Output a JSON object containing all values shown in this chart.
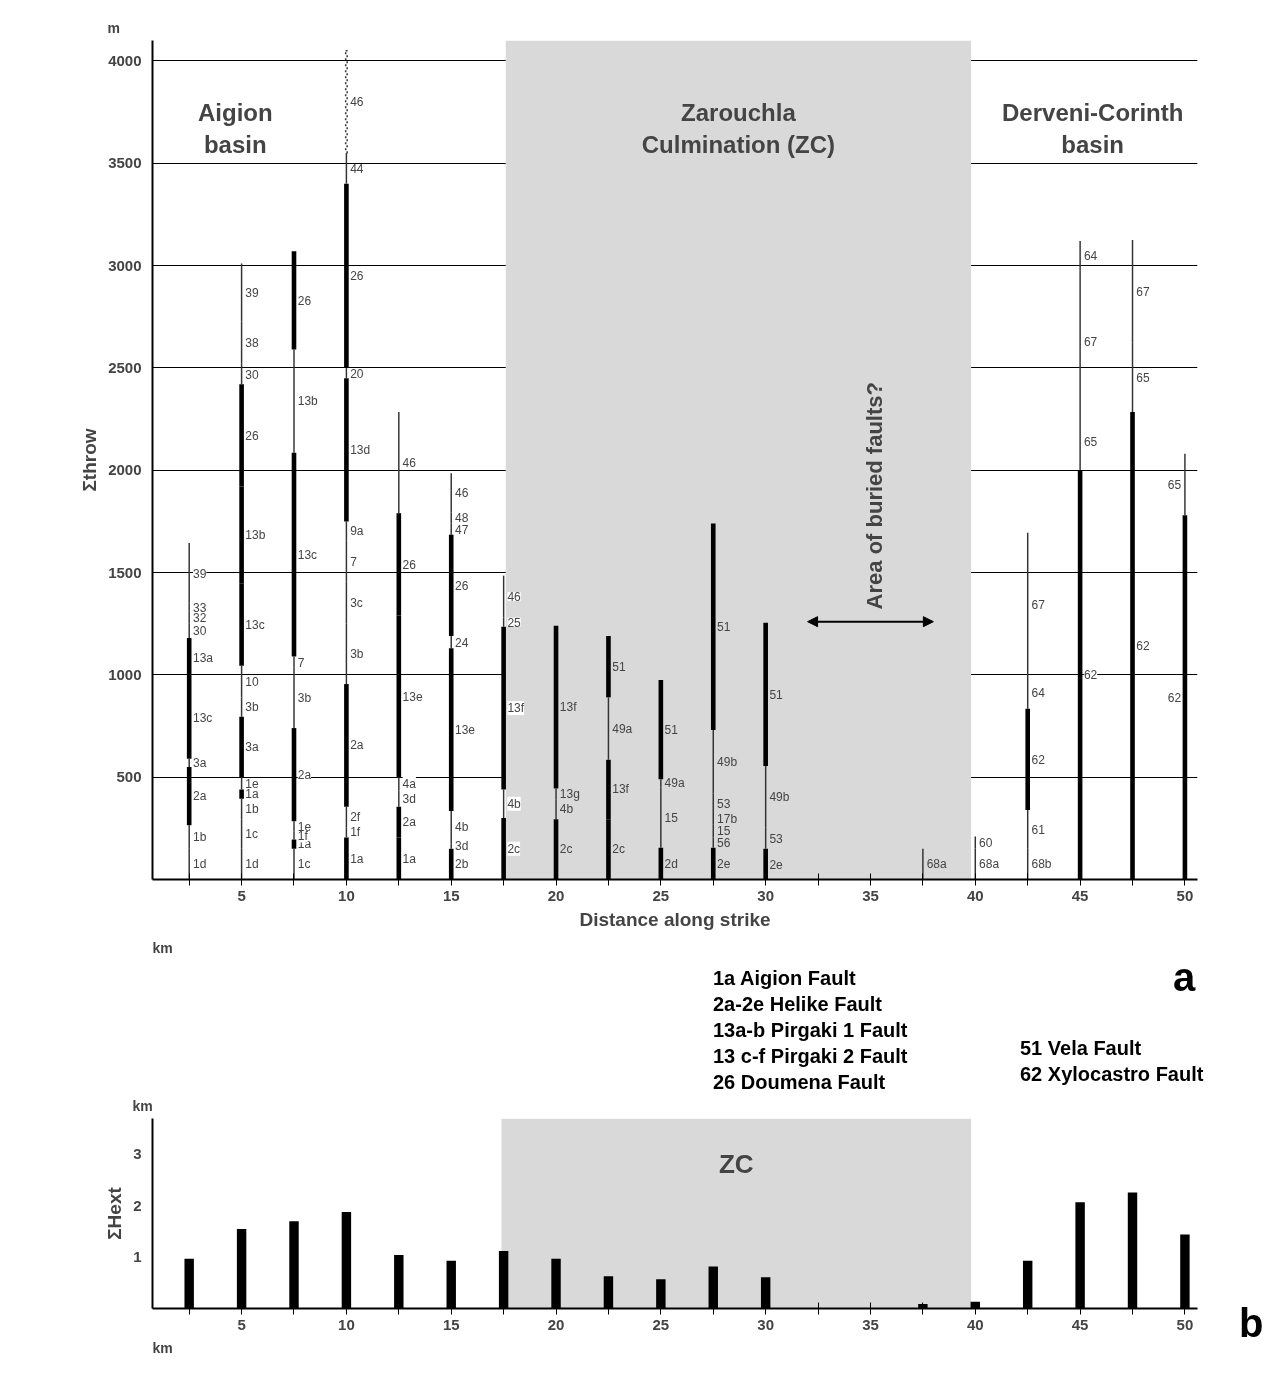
{
  "chart_data": [
    {
      "type": "bar",
      "ylabel": "Σthrow",
      "xlabel": "Distance along strike",
      "xlim": [
        0.75,
        50.6
      ],
      "ylim": [
        0,
        4100
      ],
      "xticks": [
        {
          "value": 2.5,
          "label": null
        },
        5,
        {
          "value": 7.5,
          "label": null
        },
        10,
        {
          "value": 12.5,
          "label": null
        },
        15,
        {
          "value": 17.5,
          "label": null
        },
        20,
        {
          "value": 22.5,
          "label": null
        },
        25,
        {
          "value": 27.5,
          "label": null
        },
        30,
        {
          "value": 32.5,
          "label": null
        },
        35,
        {
          "value": 37.5,
          "label": null
        },
        40,
        {
          "value": 42.5,
          "label": null
        },
        45,
        {
          "value": 47.5,
          "label": null
        },
        50
      ],
      "yticks": [
        500,
        1000,
        1500,
        2000,
        2500,
        3000,
        3500,
        4000
      ],
      "grid": "y",
      "bands": [
        {
          "axis": "x",
          "from": 17.6,
          "to": 39.8,
          "label": "Zarouchla\nCulmination (ZC)",
          "color": "#d9d9d9"
        }
      ],
      "series": [
        {
          "color": "#000000",
          "x": [
            2.5,
            5,
            7.5,
            10,
            12.5,
            15,
            17.5,
            20,
            22.5,
            25,
            27.5,
            30,
            42.5,
            45,
            47.5,
            50
          ],
          "base": [
            265,
            395,
            150,
            0,
            0,
            0,
            0,
            0,
            0,
            0,
            0,
            0,
            340,
            0,
            0,
            0
          ],
          "values": [
            285,
            45,
            45,
            205,
            205,
            150,
            300,
            295,
            295,
            155,
            155,
            150,
            495,
            2000,
            2285,
            1780
          ]
        },
        {
          "color": "#000000",
          "x": [
            2.5,
            5,
            7.5,
            10,
            12.5,
            15,
            17.5,
            20,
            22.5,
            25,
            27.5,
            30
          ],
          "base": [
            590,
            500,
            285,
            355,
            205,
            335,
            440,
            445,
            295,
            490,
            730,
            555
          ],
          "values": [
            395,
            295,
            455,
            600,
            150,
            795,
            795,
            795,
            290,
            485,
            1010,
            700
          ]
        },
        {
          "color": "#000000",
          "x": [
            2.5,
            5,
            7.5,
            10,
            12.5,
            15,
            22.5
          ],
          "base": [
            985,
            1045,
            1090,
            1750,
            500,
            1190,
            890
          ],
          "values": [
            195,
            400,
            995,
            700,
            790,
            495,
            300
          ]
        },
        {
          "color": "#000000",
          "x": [
            5,
            7.5,
            10,
            12.5
          ],
          "base": [
            1445,
            2590,
            2500,
            1290
          ],
          "values": [
            475,
            480,
            900,
            500
          ]
        },
        {
          "color": "#000000",
          "x": [
            5
          ],
          "base": [
            1920
          ],
          "values": [
            500
          ]
        },
        {
          "color": "#333333",
          "x": [
            2.5,
            5,
            7.5,
            10,
            12.5,
            15,
            17.5,
            20,
            22.5,
            25,
            27.5,
            30,
            37.5,
            40,
            42.5,
            45,
            47.5,
            50
          ],
          "base": [
            0,
            0,
            0,
            205,
            355,
            150,
            300,
            295,
            585,
            155,
            155,
            150,
            0,
            0,
            0,
            2000,
            2285,
            1780
          ],
          "values": [
            150,
            150,
            150,
            50,
            80,
            25,
            140,
            95,
            305,
            295,
            50,
            105,
            150,
            150,
            150,
            280,
            340,
            300
          ]
        },
        {
          "color": "#333333",
          "x": [
            2.5,
            5,
            7.5,
            10,
            12.5,
            15,
            17.5,
            20,
            25,
            27.5,
            30,
            40,
            42.5,
            45,
            47.5
          ],
          "base": [
            150,
            150,
            195,
            255,
            435,
            175,
            1235,
            390,
            450,
            205,
            255,
            150,
            150,
            2280,
            2625
          ],
          "values": [
            115,
            145,
            40,
            100,
            65,
            160,
            45,
            55,
            40,
            65,
            300,
            60,
            190,
            695,
            500
          ]
        },
        {
          "color": "#333333",
          "x": [
            2.5,
            5,
            7.5,
            10,
            12.5,
            15,
            17.5,
            27.5,
            42.5,
            45
          ],
          "base": [
            550,
            295,
            235,
            955,
            1790,
            1130,
            1280,
            270,
            835,
            2975
          ],
          "values": [
            40,
            100,
            50,
            295,
            495,
            60,
            205,
            55,
            160,
            145
          ]
        },
        {
          "color": "#333333",
          "x": [
            2.5,
            5,
            7.5,
            10,
            15,
            27.5,
            42.5
          ],
          "base": [
            1180,
            440,
            740,
            1250,
            1685,
            325,
            995
          ],
          "values": [
            70,
            60,
            295,
            205,
            55,
            95,
            700
          ]
        },
        {
          "color": "#333333",
          "x": [
            2.5,
            5,
            7.5,
            10,
            15,
            27.5
          ],
          "base": [
            1250,
            795,
            1035,
            1455,
            1740,
            420
          ],
          "values": [
            60,
            95,
            55,
            200,
            55,
            310
          ]
        },
        {
          "color": "#333333",
          "x": [
            2.5,
            5,
            7.5,
            10,
            15
          ],
          "base": [
            1310,
            890,
            2085,
            1655,
            1795
          ],
          "values": [
            40,
            155,
            505,
            95,
            190
          ]
        },
        {
          "color": "#333333",
          "x": [
            2.5,
            5,
            10
          ],
          "base": [
            1350,
            2420,
            2450
          ],
          "values": [
            295,
            100,
            50
          ]
        },
        {
          "color": "#333333",
          "x": [
            5,
            10
          ],
          "base": [
            2520,
            3400
          ],
          "values": [
            205,
            150
          ]
        },
        {
          "color": "#333333",
          "x": [
            5
          ],
          "base": [
            2725
          ],
          "values": [
            285
          ]
        },
        {
          "color": "#333333",
          "line_style": "dotted",
          "x": [
            10
          ],
          "base": [
            3550
          ],
          "values": [
            500
          ]
        }
      ],
      "annotations": [
        "m",
        "km",
        "Aigion\nbasin",
        "Derveni-Corinth\nbasin",
        "Area of buried faults?",
        "1a Aigion Fault",
        "2a-2e Helike Fault",
        "13a-b Pirgaki 1 Fault",
        "13 c-f Pirgaki 2 Fault",
        "26 Doumena Fault",
        "51 Vela Fault",
        "62 Xylocastro Fault",
        "a",
        {
          "text": "1d",
          "x": 2.5,
          "y": 75
        },
        {
          "text": "1b",
          "x": 2.5,
          "y": 207.5
        },
        {
          "text": "2a",
          "x": 2.5,
          "y": 407.5
        },
        {
          "text": "3a",
          "x": 2.5,
          "y": 570
        },
        {
          "text": "13c",
          "x": 2.5,
          "y": 787.5
        },
        {
          "text": "13a",
          "x": 2.5,
          "y": 1082.5
        },
        {
          "text": "30",
          "x": 2.5,
          "y": 1215
        },
        {
          "text": "32",
          "x": 2.5,
          "y": 1280
        },
        {
          "text": "33",
          "x": 2.5,
          "y": 1330
        },
        {
          "text": "39",
          "x": 2.5,
          "y": 1497.5
        },
        {
          "text": "1d",
          "x": 5,
          "y": 75
        },
        {
          "text": "1c",
          "x": 5,
          "y": 222.5
        },
        {
          "text": "1b",
          "x": 5,
          "y": 345
        },
        {
          "text": "1a",
          "x": 5,
          "y": 417.5
        },
        {
          "text": "1e",
          "x": 5,
          "y": 470
        },
        {
          "text": "3a",
          "x": 5,
          "y": 647.5
        },
        {
          "text": "3b",
          "x": 5,
          "y": 842.5
        },
        {
          "text": "10",
          "x": 5,
          "y": 967.5
        },
        {
          "text": "13c",
          "x": 5,
          "y": 1245
        },
        {
          "text": "13b",
          "x": 5,
          "y": 1682.5
        },
        {
          "text": "26",
          "x": 5,
          "y": 2170
        },
        {
          "text": "30",
          "x": 5,
          "y": 2470
        },
        {
          "text": "38",
          "x": 5,
          "y": 2622.5
        },
        {
          "text": "39",
          "x": 5,
          "y": 2867.5
        },
        {
          "text": "1c",
          "x": 7.5,
          "y": 75
        },
        {
          "text": "1a",
          "x": 7.5,
          "y": 172.5
        },
        {
          "text": "1f",
          "x": 7.5,
          "y": 215
        },
        {
          "text": "1e",
          "x": 7.5,
          "y": 260
        },
        {
          "text": "2a",
          "x": 7.5,
          "y": 512.5
        },
        {
          "text": "3b",
          "x": 7.5,
          "y": 887.5
        },
        {
          "text": "7",
          "x": 7.5,
          "y": 1062.5
        },
        {
          "text": "13c",
          "x": 7.5,
          "y": 1587.5
        },
        {
          "text": "13b",
          "x": 7.5,
          "y": 2337.5
        },
        {
          "text": "26",
          "x": 7.5,
          "y": 2830
        },
        {
          "text": "1a",
          "x": 10,
          "y": 102.5
        },
        {
          "text": "1f",
          "x": 10,
          "y": 230
        },
        {
          "text": "2f",
          "x": 10,
          "y": 305
        },
        {
          "text": "2a",
          "x": 10,
          "y": 655
        },
        {
          "text": "3b",
          "x": 10,
          "y": 1102.5
        },
        {
          "text": "3c",
          "x": 10,
          "y": 1352.5
        },
        {
          "text": "7",
          "x": 10,
          "y": 1555
        },
        {
          "text": "9a",
          "x": 10,
          "y": 1702.5
        },
        {
          "text": "13d",
          "x": 10,
          "y": 2100
        },
        {
          "text": "20",
          "x": 10,
          "y": 2475
        },
        {
          "text": "26",
          "x": 10,
          "y": 2950
        },
        {
          "text": "44",
          "x": 10,
          "y": 3475
        },
        {
          "text": "46",
          "x": 10,
          "y": 3800
        },
        {
          "text": "1a",
          "x": 12.5,
          "y": 102.5
        },
        {
          "text": "2a",
          "x": 12.5,
          "y": 280
        },
        {
          "text": "3d",
          "x": 12.5,
          "y": 395
        },
        {
          "text": "4a",
          "x": 12.5,
          "y": 467.5
        },
        {
          "text": "13e",
          "x": 12.5,
          "y": 895
        },
        {
          "text": "26",
          "x": 12.5,
          "y": 1540
        },
        {
          "text": "46",
          "x": 12.5,
          "y": 2037.5
        },
        {
          "text": "2b",
          "x": 15,
          "y": 75
        },
        {
          "text": "3d",
          "x": 15,
          "y": 162.5
        },
        {
          "text": "4b",
          "x": 15,
          "y": 255
        },
        {
          "text": "13e",
          "x": 15,
          "y": 732.5
        },
        {
          "text": "24",
          "x": 15,
          "y": 1160
        },
        {
          "text": "26",
          "x": 15,
          "y": 1437.5
        },
        {
          "text": "47",
          "x": 15,
          "y": 1712.5
        },
        {
          "text": "48",
          "x": 15,
          "y": 1767.5
        },
        {
          "text": "46",
          "x": 15,
          "y": 1890
        },
        {
          "text": "2c",
          "x": 17.5,
          "y": 150
        },
        {
          "text": "4b",
          "x": 17.5,
          "y": 370
        },
        {
          "text": "13f",
          "x": 17.5,
          "y": 837.5
        },
        {
          "text": "25",
          "x": 17.5,
          "y": 1257.5
        },
        {
          "text": "46",
          "x": 17.5,
          "y": 1382.5
        },
        {
          "text": "2c",
          "x": 20,
          "y": 147.5
        },
        {
          "text": "4b",
          "x": 20,
          "y": 342.5
        },
        {
          "text": "13g",
          "x": 20,
          "y": 417.5
        },
        {
          "text": "13f",
          "x": 20,
          "y": 842.5
        },
        {
          "text": "2c",
          "x": 22.5,
          "y": 147.5
        },
        {
          "text": "13f",
          "x": 22.5,
          "y": 440
        },
        {
          "text": "49a",
          "x": 22.5,
          "y": 737.5
        },
        {
          "text": "51",
          "x": 22.5,
          "y": 1040
        },
        {
          "text": "2d",
          "x": 25,
          "y": 77.5
        },
        {
          "text": "15",
          "x": 25,
          "y": 302.5
        },
        {
          "text": "49a",
          "x": 25,
          "y": 470
        },
        {
          "text": "51",
          "x": 25,
          "y": 732.5
        },
        {
          "text": "2e",
          "x": 27.5,
          "y": 77.5
        },
        {
          "text": "56",
          "x": 27.5,
          "y": 180
        },
        {
          "text": "15",
          "x": 27.5,
          "y": 237.5
        },
        {
          "text": "17b",
          "x": 27.5,
          "y": 297.5
        },
        {
          "text": "53",
          "x": 27.5,
          "y": 372.5
        },
        {
          "text": "49b",
          "x": 27.5,
          "y": 575
        },
        {
          "text": "51",
          "x": 27.5,
          "y": 1235
        },
        {
          "text": "2e",
          "x": 30,
          "y": 75
        },
        {
          "text": "53",
          "x": 30,
          "y": 202.5
        },
        {
          "text": "49b",
          "x": 30,
          "y": 405
        },
        {
          "text": "51",
          "x": 30,
          "y": 905
        },
        {
          "text": "68a",
          "x": 37.5,
          "y": 75
        },
        {
          "text": "68a",
          "x": 40,
          "y": 75
        },
        {
          "text": "60",
          "x": 40,
          "y": 180
        },
        {
          "text": "68b",
          "x": 42.5,
          "y": 75
        },
        {
          "text": "61",
          "x": 42.5,
          "y": 245
        },
        {
          "text": "62",
          "x": 42.5,
          "y": 587.5
        },
        {
          "text": "64",
          "x": 42.5,
          "y": 915
        },
        {
          "text": "67",
          "x": 42.5,
          "y": 1345
        },
        {
          "text": "62",
          "x": 45,
          "y": 1000
        },
        {
          "text": "65",
          "x": 45,
          "y": 2140
        },
        {
          "text": "67",
          "x": 45,
          "y": 2627.5
        },
        {
          "text": "64",
          "x": 45,
          "y": 3047.5
        },
        {
          "text": "62",
          "x": 47.5,
          "y": 1142.5
        },
        {
          "text": "65",
          "x": 47.5,
          "y": 2455
        },
        {
          "text": "67",
          "x": 47.5,
          "y": 2875
        },
        {
          "text": "62",
          "x": 50,
          "y": 890
        },
        {
          "text": "65",
          "x": 50,
          "y": 1930
        }
      ]
    },
    {
      "type": "bar",
      "ylabel": "ΣHext",
      "xlim": [
        0.75,
        50.6
      ],
      "ylim": [
        0,
        3.7
      ],
      "xticks": [
        {
          "value": 2.5,
          "label": null
        },
        5,
        {
          "value": 7.5,
          "label": null
        },
        10,
        {
          "value": 12.5,
          "label": null
        },
        15,
        {
          "value": 17.5,
          "label": null
        },
        20,
        {
          "value": 22.5,
          "label": null
        },
        25,
        {
          "value": 27.5,
          "label": null
        },
        30,
        {
          "value": 32.5,
          "label": null
        },
        35,
        {
          "value": 37.5,
          "label": null
        },
        40,
        {
          "value": 42.5,
          "label": null
        },
        45,
        {
          "value": 47.5,
          "label": null
        },
        50
      ],
      "yticks": [
        1,
        2,
        3
      ],
      "bands": [
        {
          "axis": "x",
          "from": 17.4,
          "to": 39.8,
          "label": "ZC",
          "color": "#d9d9d9"
        }
      ],
      "annotations": [
        "km",
        "km",
        "b"
      ],
      "x": [
        2.5,
        5,
        7.5,
        10,
        12.5,
        15,
        17.5,
        20,
        22.5,
        25,
        27.5,
        30,
        32.5,
        35,
        37.5,
        40,
        42.5,
        45,
        47.5,
        50
      ],
      "values": [
        0.97,
        1.55,
        1.7,
        1.88,
        1.04,
        0.93,
        1.12,
        0.97,
        0.63,
        0.57,
        0.82,
        0.61,
        null,
        null,
        0.09,
        0.13,
        0.93,
        2.07,
        2.26,
        1.44
      ],
      "color": "#000000"
    }
  ]
}
